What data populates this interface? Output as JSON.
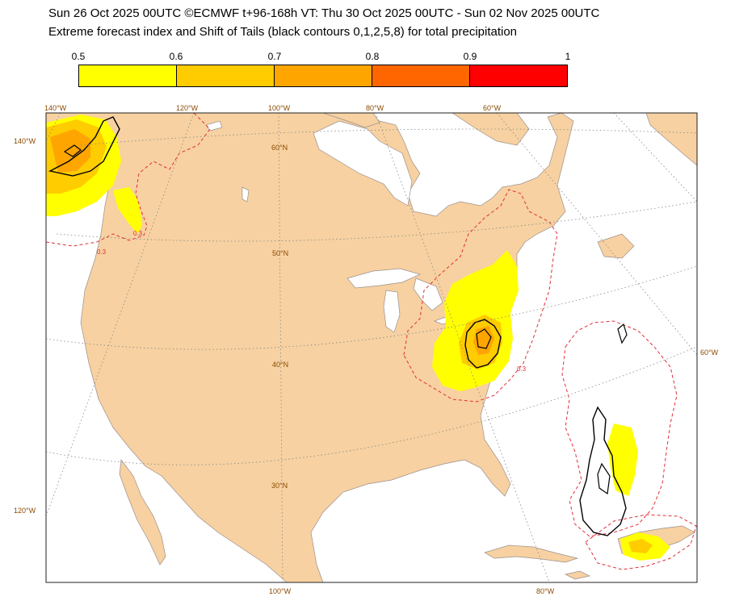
{
  "header": {
    "line1": "Sun 26 Oct 2025 00UTC ©ECMWF t+96-168h  VT: Thu 30 Oct 2025 00UTC - Sun 02 Nov 2025 00UTC",
    "line2": "Extreme forecast index and Shift of Tails (black contours 0,1,2,5,8) for total precipitation"
  },
  "colorbar": {
    "ticks": [
      "0.5",
      "0.6",
      "0.7",
      "0.8",
      "0.9",
      "1"
    ],
    "colors": [
      "#ffff00",
      "#ffcc00",
      "#ffa500",
      "#ff6600",
      "#ff0000"
    ]
  },
  "map": {
    "top_labels": [
      "140°W",
      "120°W",
      "100°W",
      "80°W",
      "60°W"
    ],
    "bottom_labels": [
      "100°W",
      "80°W"
    ],
    "left_labels": [
      "140°W",
      "120°W"
    ],
    "right_labels": [
      "60°W"
    ],
    "lat_labels": [
      "60°N",
      "50°N",
      "40°N",
      "30°N"
    ],
    "contour_labels": [
      "0.3",
      "0.3",
      "0.3"
    ],
    "land_color": "#f7d1a1",
    "ocean_color": "#ffffff",
    "lake_color": "#ffffff"
  }
}
